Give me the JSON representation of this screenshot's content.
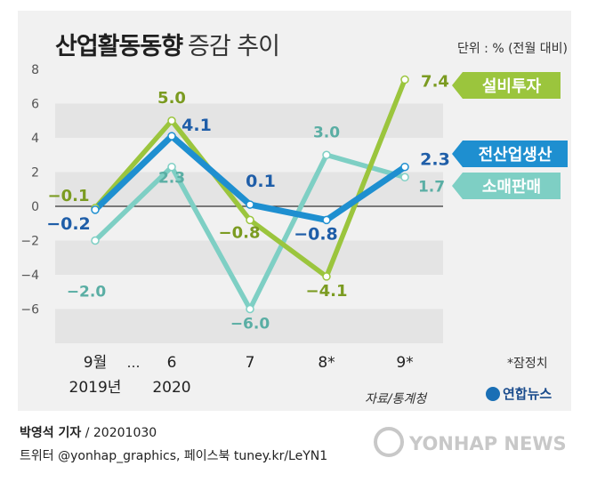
{
  "title": {
    "main": "산업활동동향",
    "sub": "증감 추이"
  },
  "unit": "단위 : % (전월 대비)",
  "chart_data": {
    "type": "line",
    "x": [
      "9월",
      "6",
      "7",
      "8*",
      "9*"
    ],
    "x_sub": [
      "2019년",
      "2020",
      "",
      "",
      ""
    ],
    "ellipsis": "…",
    "y_ticks": [
      "8",
      "6",
      "4",
      "2",
      "0",
      "−2",
      "−4",
      "−6"
    ],
    "ylim": [
      -8,
      8
    ],
    "series": [
      {
        "name": "소매판매",
        "color": "#7ecfc4",
        "label_color": "#5aaea4",
        "values": [
          -2.0,
          2.3,
          -6.0,
          3.0,
          1.7
        ],
        "labels": [
          "−2.0",
          "2.3",
          "−6.0",
          "3.0",
          "1.7"
        ]
      },
      {
        "name": "설비투자",
        "color": "#9bc53d",
        "label_color": "#7b9b21",
        "values": [
          -0.1,
          5.0,
          -0.8,
          -4.1,
          7.4
        ],
        "labels": [
          "−0.1",
          "5.0",
          "−0.8",
          "−4.1",
          "7.4"
        ]
      },
      {
        "name": "전산업생산",
        "color": "#1e8fd0",
        "label_color": "#1f5ea8",
        "values": [
          -0.2,
          4.1,
          0.1,
          -0.8,
          2.3
        ],
        "labels": [
          "−0.2",
          "4.1",
          "0.1",
          "−0.8",
          "2.3"
        ]
      }
    ]
  },
  "prelim_note": "*잠정치",
  "source": "자료/통계청",
  "brand": "연합뉴스",
  "credit": {
    "reporter": "박영석 기자",
    "date": "/ 20201030"
  },
  "sns": "트위터 @yonhap_graphics, 페이스북 tuney.kr/LeYN1",
  "watermark": "YONHAP NEWS"
}
